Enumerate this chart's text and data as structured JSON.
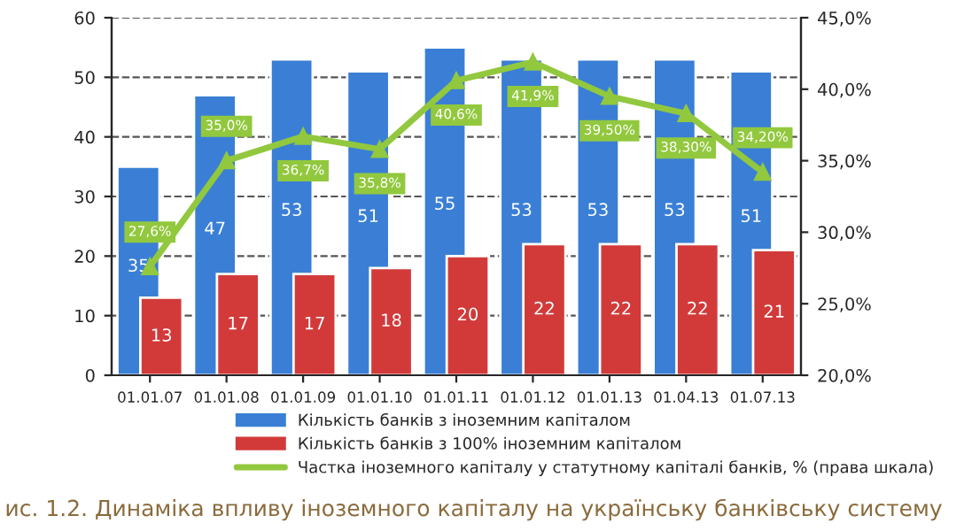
{
  "chart_data": {
    "type": "bar",
    "categories": [
      "01.01.07",
      "01.01.08",
      "01.01.09",
      "01.01.10",
      "01.01.11",
      "01.01.12",
      "01.01.13",
      "01.04.13",
      "01.07.13"
    ],
    "series": [
      {
        "name": "Кількість банків з іноземним капіталом",
        "color": "#3a7fd5",
        "values": [
          35,
          47,
          53,
          51,
          55,
          53,
          53,
          53,
          51
        ]
      },
      {
        "name": "Кількість банків з 100% іноземним капіталом",
        "color": "#d23a3a",
        "values": [
          13,
          17,
          17,
          18,
          20,
          22,
          22,
          22,
          21
        ]
      },
      {
        "name": "Частка іноземного капіталу у статутному капіталі банків, % (права шкала)",
        "type": "line",
        "axis": "y2",
        "color": "#92c83e",
        "marker": "triangle",
        "values": [
          27.6,
          35.0,
          36.7,
          35.8,
          40.6,
          41.9,
          39.5,
          38.3,
          34.2
        ],
        "value_labels": [
          "27,6%",
          "35,0%",
          "36,7%",
          "35,8%",
          "40,6%",
          "41,9%",
          "39,50%",
          "38,30%",
          "34,20%"
        ]
      }
    ],
    "ylim": [
      0,
      60
    ],
    "yticks": [
      0,
      10,
      20,
      30,
      40,
      50,
      60
    ],
    "y2lim": [
      20,
      45
    ],
    "y2ticks": [
      {
        "value": 20,
        "label": "20,0%"
      },
      {
        "value": 25,
        "label": "25,0%"
      },
      {
        "value": 30,
        "label": "30,0%"
      },
      {
        "value": 35,
        "label": "35,0%"
      },
      {
        "value": 40,
        "label": "40,0%"
      },
      {
        "value": 45,
        "label": "45,0%"
      }
    ],
    "data_labels": true,
    "grid": "y",
    "legend": "bottom",
    "annotations": [
      "ис. 1.2. Динаміка впливу іноземного капіталу на українську банківську систему"
    ]
  }
}
